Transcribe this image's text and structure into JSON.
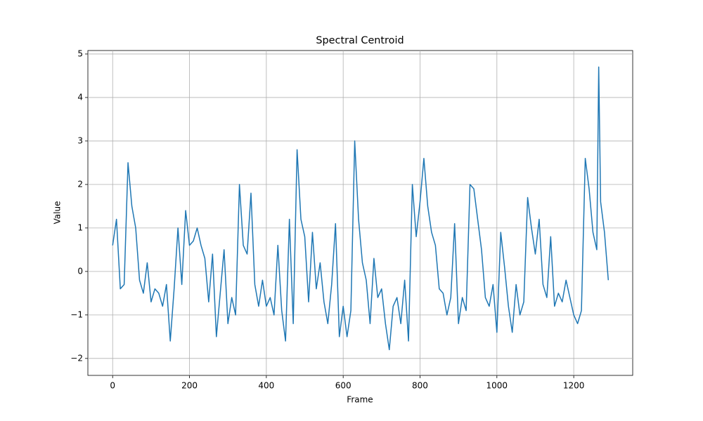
{
  "chart_data": {
    "type": "line",
    "title": "Spectral Centroid",
    "x_label": "Frame",
    "y_label": "Value",
    "color": "#1f77b4",
    "grid": true,
    "xlim": [
      -64.45,
      1353.45
    ],
    "ylim": [
      -2.39,
      5.08
    ],
    "xticks": [
      0,
      200,
      400,
      600,
      800,
      1000,
      1200
    ],
    "yticks": [
      {
        "value": -2,
        "label": "−2"
      },
      {
        "value": -1,
        "label": "−1"
      },
      0,
      1,
      2,
      3,
      4,
      5
    ],
    "x": [
      0,
      10,
      20,
      30,
      40,
      50,
      60,
      70,
      80,
      90,
      100,
      110,
      120,
      130,
      140,
      150,
      160,
      170,
      180,
      190,
      200,
      210,
      220,
      230,
      240,
      250,
      260,
      270,
      280,
      290,
      300,
      310,
      320,
      330,
      340,
      350,
      360,
      370,
      380,
      390,
      400,
      410,
      420,
      430,
      440,
      450,
      460,
      470,
      480,
      490,
      500,
      510,
      520,
      530,
      540,
      550,
      560,
      570,
      580,
      590,
      600,
      610,
      620,
      630,
      640,
      650,
      660,
      670,
      680,
      690,
      700,
      710,
      720,
      730,
      740,
      750,
      760,
      770,
      780,
      790,
      800,
      810,
      820,
      830,
      840,
      850,
      860,
      870,
      880,
      890,
      900,
      910,
      920,
      930,
      940,
      950,
      960,
      970,
      980,
      990,
      1000,
      1010,
      1020,
      1030,
      1040,
      1050,
      1060,
      1070,
      1080,
      1090,
      1100,
      1110,
      1120,
      1130,
      1140,
      1150,
      1160,
      1170,
      1180,
      1190,
      1200,
      1210,
      1220,
      1230,
      1240,
      1250,
      1260,
      1265,
      1270,
      1280,
      1290
    ],
    "values": [
      0.6,
      1.2,
      -0.4,
      -0.3,
      2.5,
      1.5,
      1.0,
      -0.2,
      -0.5,
      0.2,
      -0.7,
      -0.4,
      -0.5,
      -0.8,
      -0.3,
      -1.6,
      -0.4,
      1.0,
      -0.3,
      1.4,
      0.6,
      0.7,
      1.0,
      0.6,
      0.3,
      -0.7,
      0.4,
      -1.5,
      -0.5,
      0.5,
      -1.2,
      -0.6,
      -1.0,
      2.0,
      0.6,
      0.4,
      1.8,
      -0.3,
      -0.8,
      -0.2,
      -0.8,
      -0.6,
      -1.0,
      0.6,
      -0.9,
      -1.6,
      1.2,
      -1.2,
      2.8,
      1.2,
      0.8,
      -0.7,
      0.9,
      -0.4,
      0.2,
      -0.7,
      -1.2,
      -0.3,
      1.1,
      -1.5,
      -0.8,
      -1.5,
      -0.9,
      3.0,
      1.2,
      0.2,
      -0.2,
      -1.2,
      0.3,
      -0.6,
      -0.4,
      -1.2,
      -1.8,
      -0.8,
      -0.6,
      -1.2,
      -0.2,
      -1.6,
      2.0,
      0.8,
      1.6,
      2.6,
      1.5,
      0.9,
      0.6,
      -0.4,
      -0.5,
      -1.0,
      -0.6,
      1.1,
      -1.2,
      -0.6,
      -0.9,
      2.0,
      1.9,
      1.2,
      0.5,
      -0.6,
      -0.8,
      -0.3,
      -1.4,
      0.9,
      0.1,
      -0.8,
      -1.4,
      -0.3,
      -1.0,
      -0.7,
      1.7,
      1.0,
      0.4,
      1.2,
      -0.3,
      -0.6,
      0.8,
      -0.8,
      -0.5,
      -0.7,
      -0.2,
      -0.6,
      -1.0,
      -1.2,
      -0.9,
      2.6,
      1.9,
      0.9,
      0.5,
      4.7,
      1.6,
      0.9,
      -0.2
    ]
  }
}
